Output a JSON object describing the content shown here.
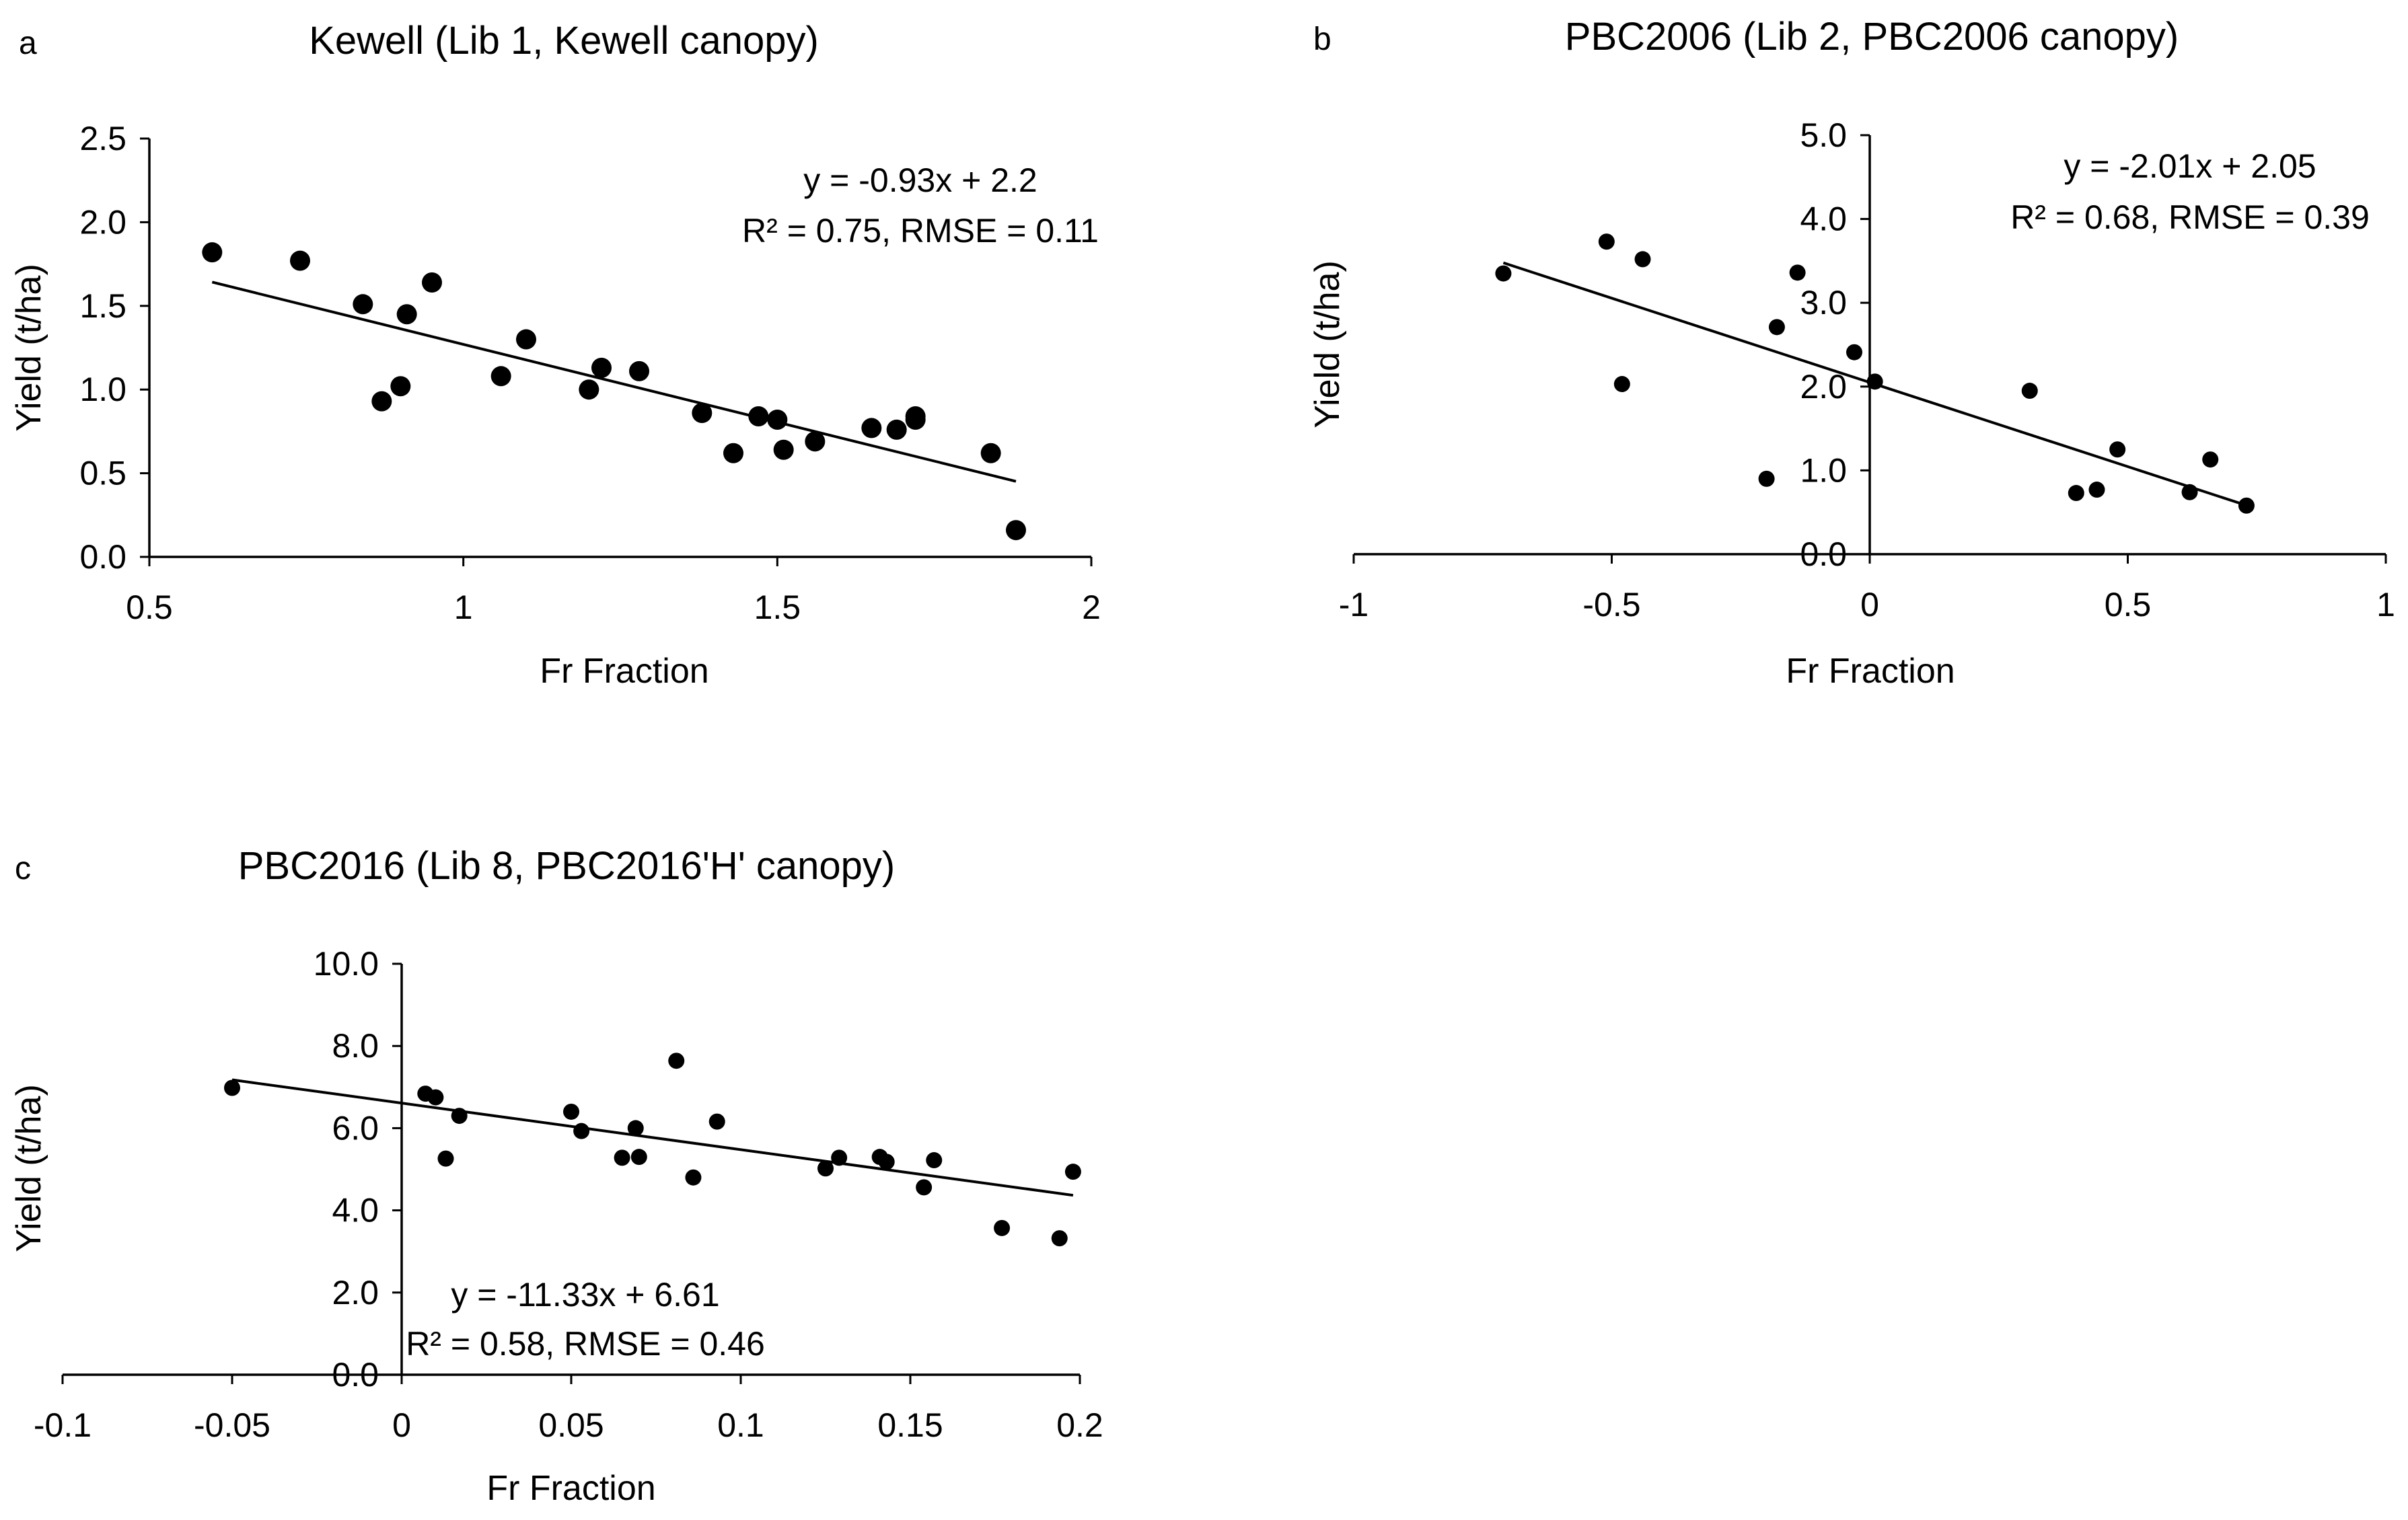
{
  "chart_data": [
    {
      "type": "scatter",
      "panel": "a",
      "title": "Kewell (Lib 1, Kewell canopy)",
      "xlabel": "Fr Fraction",
      "ylabel": "Yield (t/ha)",
      "xlim": [
        0.5,
        2
      ],
      "ylim": [
        0,
        2.5
      ],
      "xticks": [
        "0.5",
        "1",
        "1.5",
        "2"
      ],
      "yticks": [
        "0.0",
        "0.5",
        "1.0",
        "1.5",
        "2.0",
        "2.5"
      ],
      "equation": "y = -0.93x + 2.2",
      "stats": "R² = 0.75, RMSE = 0.11",
      "trend": {
        "slope": -0.93,
        "intercept": 2.2,
        "x_from": 0.6,
        "x_to": 1.88
      },
      "points": [
        [
          0.6,
          1.82
        ],
        [
          0.74,
          1.77
        ],
        [
          0.84,
          1.51
        ],
        [
          0.87,
          0.93
        ],
        [
          0.9,
          1.02
        ],
        [
          0.91,
          1.45
        ],
        [
          0.95,
          1.64
        ],
        [
          1.06,
          1.08
        ],
        [
          1.1,
          1.3
        ],
        [
          1.2,
          1.0
        ],
        [
          1.22,
          1.13
        ],
        [
          1.28,
          1.11
        ],
        [
          1.38,
          0.86
        ],
        [
          1.43,
          0.62
        ],
        [
          1.47,
          0.84
        ],
        [
          1.5,
          0.82
        ],
        [
          1.51,
          0.64
        ],
        [
          1.56,
          0.69
        ],
        [
          1.65,
          0.77
        ],
        [
          1.69,
          0.76
        ],
        [
          1.72,
          0.84
        ],
        [
          1.72,
          0.82
        ],
        [
          1.84,
          0.62
        ],
        [
          1.88,
          0.16
        ]
      ]
    },
    {
      "type": "scatter",
      "panel": "b",
      "title": "PBC2006 (Lib 2, PBC2006 canopy)",
      "xlabel": "Fr Fraction",
      "ylabel": "Yield (t/ha)",
      "xlim": [
        -1,
        1
      ],
      "ylim": [
        0,
        5
      ],
      "xticks": [
        "-1",
        "-0.5",
        "0",
        "0.5",
        "1"
      ],
      "yticks": [
        "0.0",
        "1.0",
        "2.0",
        "3.0",
        "4.0",
        "5.0"
      ],
      "equation": "y = -2.01x + 2.05",
      "stats": "R² = 0.68, RMSE = 0.39",
      "trend": {
        "slope": -2.01,
        "intercept": 2.05,
        "x_from": -0.71,
        "x_to": 0.73
      },
      "points": [
        [
          -0.71,
          3.35
        ],
        [
          -0.51,
          3.73
        ],
        [
          -0.48,
          2.03
        ],
        [
          -0.44,
          3.52
        ],
        [
          -0.2,
          0.9
        ],
        [
          -0.18,
          2.71
        ],
        [
          -0.14,
          3.36
        ],
        [
          -0.03,
          2.41
        ],
        [
          0.01,
          2.06
        ],
        [
          0.31,
          1.95
        ],
        [
          0.4,
          0.73
        ],
        [
          0.44,
          0.77
        ],
        [
          0.48,
          1.25
        ],
        [
          0.62,
          0.74
        ],
        [
          0.66,
          1.13
        ],
        [
          0.73,
          0.58
        ]
      ]
    },
    {
      "type": "scatter",
      "panel": "c",
      "title": "PBC2016 (Lib 8, PBC2016'H' canopy)",
      "xlabel": "Fr Fraction",
      "ylabel": "Yield (t/ha)",
      "xlim": [
        -0.1,
        0.2
      ],
      "ylim": [
        0,
        10
      ],
      "xticks": [
        "-0.1",
        "-0.05",
        "0",
        "0.05",
        "0.1",
        "0.15",
        "0.2"
      ],
      "yticks": [
        "0.0",
        "2.0",
        "4.0",
        "6.0",
        "8.0",
        "10.0"
      ],
      "equation": "y = -11.33x + 6.61",
      "stats": "R² = 0.58, RMSE = 0.46",
      "trend": {
        "slope": -11.33,
        "intercept": 6.61,
        "x_from": -0.05,
        "x_to": 0.198
      },
      "points": [
        [
          -0.05,
          6.98
        ],
        [
          0.007,
          6.84
        ],
        [
          0.01,
          6.75
        ],
        [
          0.013,
          5.26
        ],
        [
          0.017,
          6.3
        ],
        [
          0.05,
          6.4
        ],
        [
          0.053,
          5.93
        ],
        [
          0.065,
          5.28
        ],
        [
          0.069,
          6.0
        ],
        [
          0.07,
          5.3
        ],
        [
          0.081,
          7.64
        ],
        [
          0.086,
          4.8
        ],
        [
          0.093,
          6.16
        ],
        [
          0.125,
          5.02
        ],
        [
          0.129,
          5.28
        ],
        [
          0.141,
          5.3
        ],
        [
          0.143,
          5.18
        ],
        [
          0.154,
          4.56
        ],
        [
          0.157,
          5.22
        ],
        [
          0.177,
          3.57
        ],
        [
          0.194,
          3.32
        ],
        [
          0.198,
          4.94
        ]
      ]
    }
  ]
}
